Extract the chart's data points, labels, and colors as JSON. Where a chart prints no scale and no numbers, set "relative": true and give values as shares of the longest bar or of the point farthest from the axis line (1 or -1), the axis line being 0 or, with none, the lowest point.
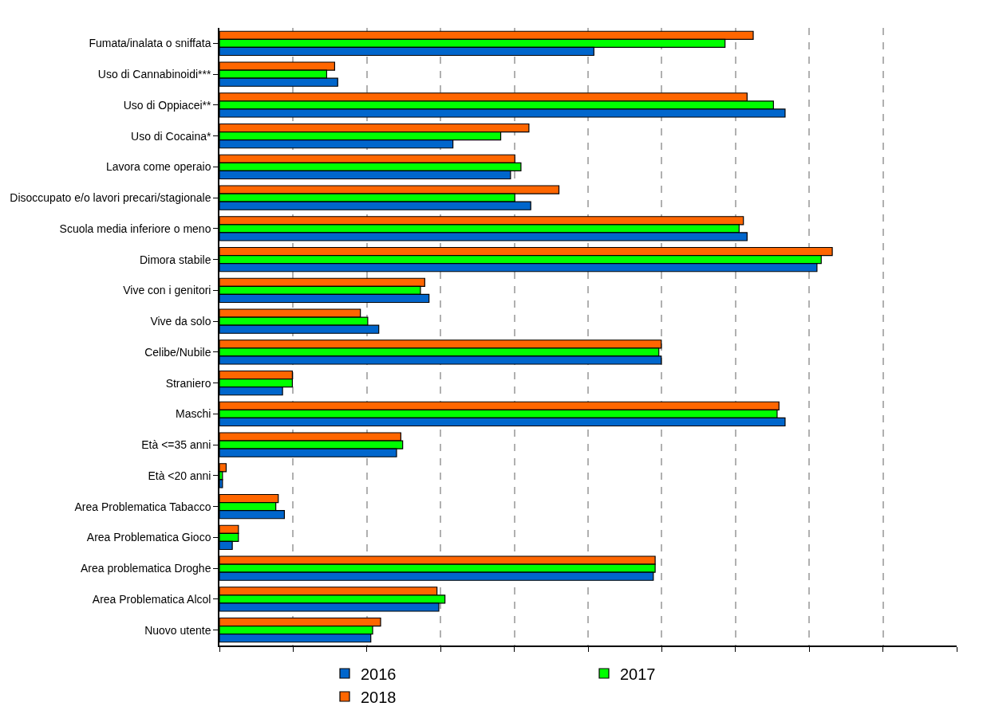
{
  "chart_data": {
    "type": "bar",
    "orientation": "horizontal",
    "relative": true,
    "grid": "x",
    "legend": "bottom",
    "categories": [
      "Fumata/inalata o sniffata",
      "Uso di Cannabinoidi***",
      "Uso di Oppiacei**",
      "Uso di Cocaina*",
      "Lavora come operaio",
      "Disoccupato e/o lavori precari/stagionale",
      "Scuola media inferiore o meno",
      "Dimora stabile",
      "Vive con i genitori",
      "Vive da solo",
      "Celibe/Nubile",
      "Straniero",
      "Maschi",
      "Età <=35 anni",
      "Età <20 anni",
      "Area Problematica Tabacco",
      "Area Problematica Gioco",
      "Area problematica Droghe",
      "Area Problematica Alcol",
      "Nuovo utente"
    ],
    "series": [
      {
        "name": "2016",
        "color": "#0066cc",
        "values": [
          0.611,
          0.193,
          0.923,
          0.381,
          0.475,
          0.508,
          0.861,
          0.975,
          0.342,
          0.26,
          0.721,
          0.103,
          0.923,
          0.289,
          0.005,
          0.106,
          0.021,
          0.708,
          0.358,
          0.247
        ]
      },
      {
        "name": "2017",
        "color": "#00ff00",
        "values": [
          0.825,
          0.175,
          0.904,
          0.459,
          0.492,
          0.482,
          0.848,
          0.982,
          0.328,
          0.242,
          0.717,
          0.119,
          0.91,
          0.299,
          0.005,
          0.092,
          0.031,
          0.711,
          0.368,
          0.25
        ]
      },
      {
        "name": "2018",
        "color": "#ff6600",
        "values": [
          0.871,
          0.188,
          0.861,
          0.505,
          0.482,
          0.554,
          0.855,
          1.0,
          0.335,
          0.23,
          0.721,
          0.119,
          0.913,
          0.296,
          0.011,
          0.096,
          0.031,
          0.711,
          0.355,
          0.263
        ]
      }
    ]
  }
}
